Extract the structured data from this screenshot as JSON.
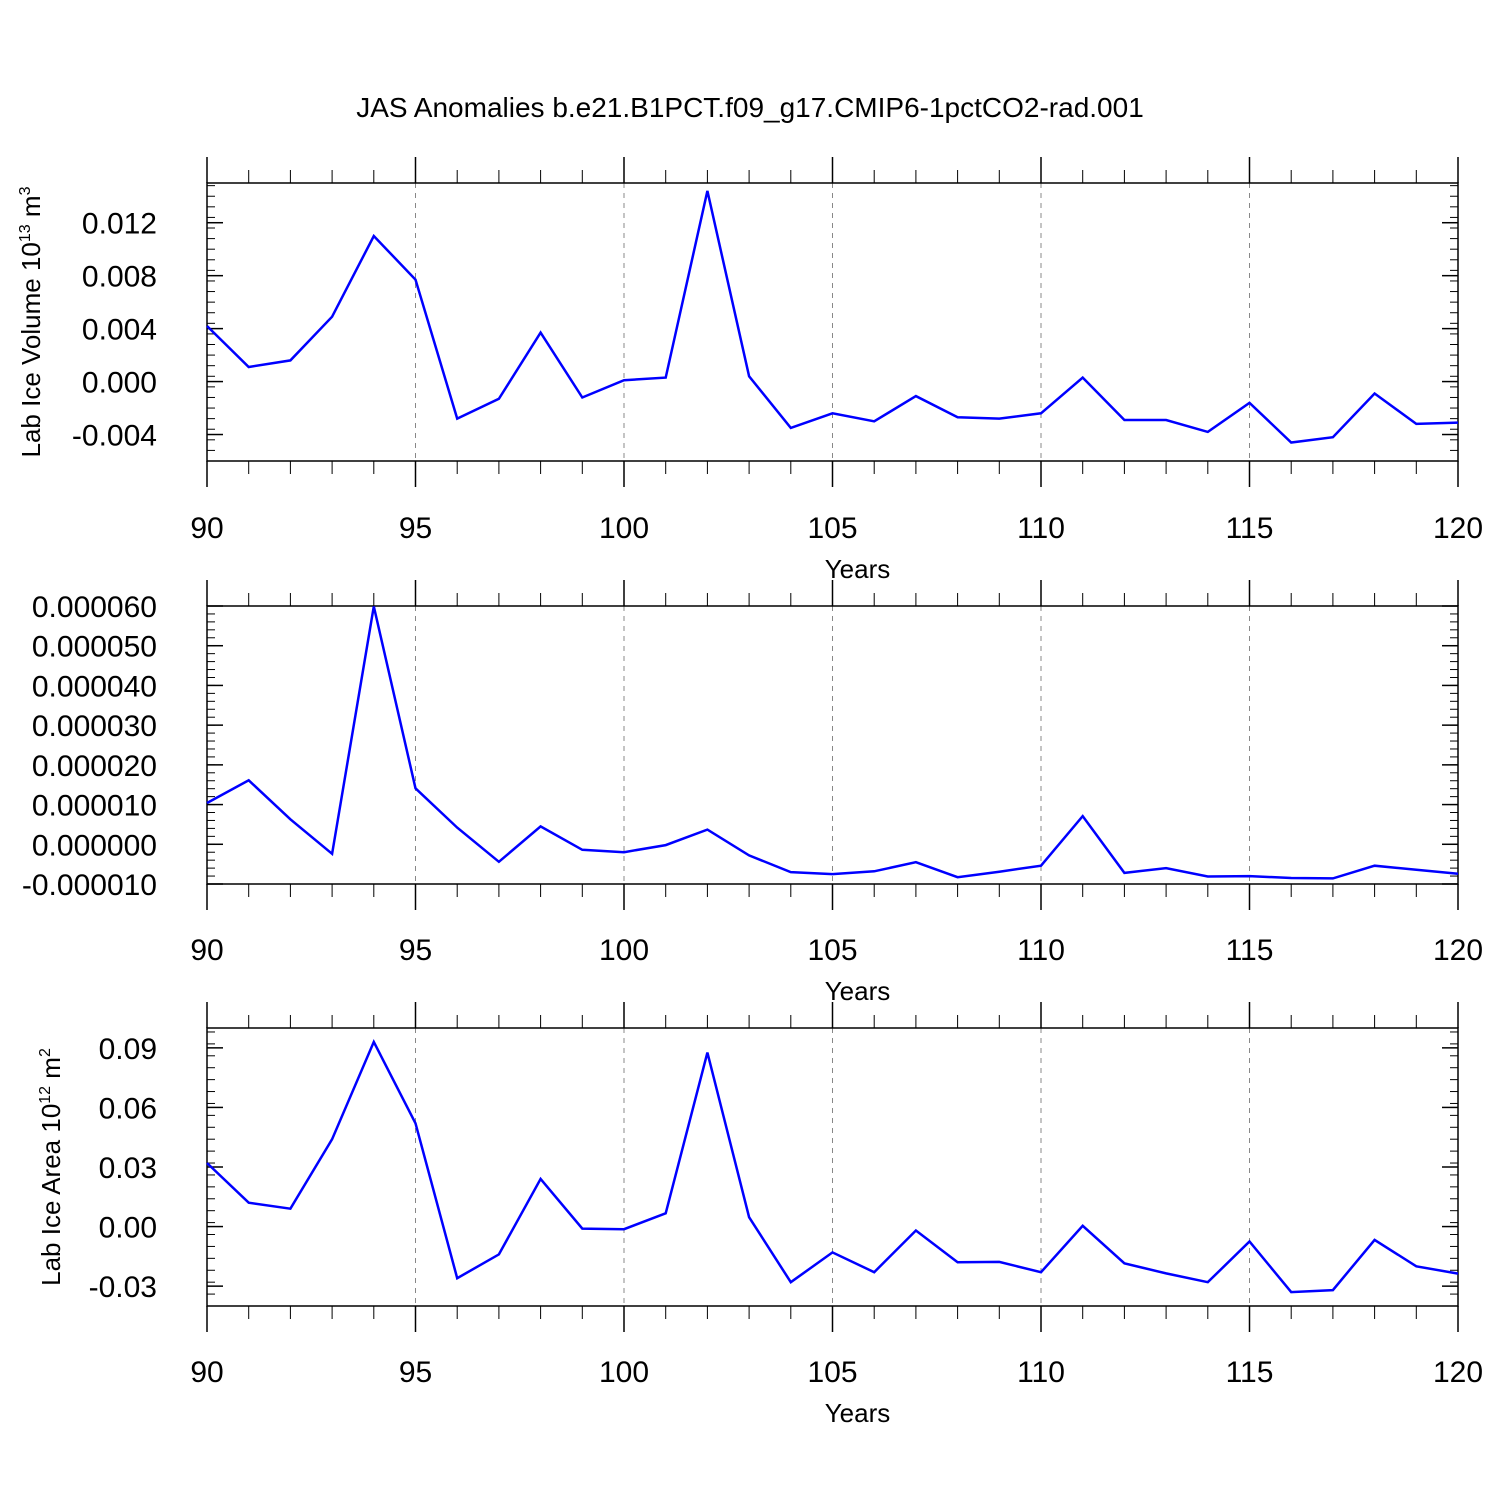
{
  "title": "JAS Anomalies b.e21.B1PCT.f09_g17.CMIP6-1pctCO2-rad.001",
  "colors": {
    "line": "#0000ff",
    "axis": "#000000",
    "grid": "#888888"
  },
  "chart_data": [
    {
      "type": "line",
      "xlabel": "Years",
      "ylabel": {
        "base": "Lab Ice Volume 10",
        "exp": "13",
        "unit": " m",
        "unit_exp": "3"
      },
      "xlim": [
        90,
        120
      ],
      "ylim": [
        -0.006,
        0.015
      ],
      "xticks": [
        90,
        95,
        100,
        105,
        110,
        115,
        120
      ],
      "yticks": [
        -0.004,
        0.0,
        0.004,
        0.008,
        0.012
      ],
      "ytick_labels": [
        "-0.004",
        "0.000",
        "0.004",
        "0.008",
        "0.012"
      ],
      "grid": "vertical dashed at major x ticks",
      "x": [
        90,
        91,
        92,
        93,
        94,
        95,
        96,
        97,
        98,
        99,
        100,
        101,
        102,
        103,
        104,
        105,
        106,
        107,
        108,
        109,
        110,
        111,
        112,
        113,
        114,
        115,
        116,
        117,
        118,
        119,
        120
      ],
      "y": [
        0.0042,
        0.0011,
        0.0016,
        0.0049,
        0.011,
        0.0077,
        -0.0028,
        -0.0013,
        0.0037,
        -0.0012,
        0.0001,
        0.0003,
        0.0144,
        0.0004,
        -0.0035,
        -0.0024,
        -0.003,
        -0.0011,
        -0.0027,
        -0.0028,
        -0.0024,
        0.0003,
        -0.0029,
        -0.0029,
        -0.0038,
        -0.0016,
        -0.0046,
        -0.0042,
        -0.0009,
        -0.0032,
        -0.0031
      ]
    },
    {
      "type": "line",
      "xlabel": "Years",
      "ylabel": null,
      "xlim": [
        90,
        120
      ],
      "ylim": [
        -1e-05,
        6e-05
      ],
      "xticks": [
        90,
        95,
        100,
        105,
        110,
        115,
        120
      ],
      "yticks": [
        -1e-05,
        0.0,
        1e-05,
        2e-05,
        3e-05,
        4e-05,
        5e-05,
        6e-05
      ],
      "ytick_labels": [
        "-0.000010",
        "0.000000",
        "0.000010",
        "0.000020",
        "0.000030",
        "0.000040",
        "0.000050",
        "0.000060"
      ],
      "grid": "vertical dashed at major x ticks",
      "x": [
        90,
        91,
        92,
        93,
        94,
        95,
        96,
        97,
        98,
        99,
        100,
        101,
        102,
        103,
        104,
        105,
        106,
        107,
        108,
        109,
        110,
        111,
        112,
        113,
        114,
        115,
        116,
        117,
        118,
        119,
        120
      ],
      "y": [
        1.04e-05,
        1.61e-05,
        6.3e-06,
        -2.4e-06,
        5.99e-05,
        1.41e-05,
        4.2e-06,
        -4.4e-06,
        4.5e-06,
        -1.4e-06,
        -2e-06,
        -2e-07,
        3.7e-06,
        -2.8e-06,
        -7e-06,
        -7.5e-06,
        -6.8e-06,
        -4.5e-06,
        -8.3e-06,
        -6.9e-06,
        -5.4e-06,
        7.1e-06,
        -7.2e-06,
        -6e-06,
        -8.1e-06,
        -8e-06,
        -8.5e-06,
        -8.6e-06,
        -5.4e-06,
        -6.4e-06,
        -7.4e-06
      ]
    },
    {
      "type": "line",
      "xlabel": "Years",
      "ylabel": {
        "base": "Lab Ice Area 10",
        "exp": "12",
        "unit": " m",
        "unit_exp": "2"
      },
      "xlim": [
        90,
        120
      ],
      "ylim": [
        -0.04,
        0.1
      ],
      "xticks": [
        90,
        95,
        100,
        105,
        110,
        115,
        120
      ],
      "yticks": [
        -0.03,
        0.0,
        0.03,
        0.06,
        0.09
      ],
      "ytick_labels": [
        "-0.03",
        "0.00",
        "0.03",
        "0.06",
        "0.09"
      ],
      "grid": "vertical dashed at major x ticks",
      "x": [
        90,
        91,
        92,
        93,
        94,
        95,
        96,
        97,
        98,
        99,
        100,
        101,
        102,
        103,
        104,
        105,
        106,
        107,
        108,
        109,
        110,
        111,
        112,
        113,
        114,
        115,
        116,
        117,
        118,
        119,
        120
      ],
      "y": [
        0.032,
        0.012,
        0.009,
        0.044,
        0.093,
        0.052,
        -0.026,
        -0.014,
        0.024,
        -0.001,
        -0.0013,
        0.0067,
        0.0876,
        0.0047,
        -0.028,
        -0.013,
        -0.023,
        -0.002,
        -0.018,
        -0.0178,
        -0.023,
        0.0004,
        -0.0185,
        -0.0236,
        -0.028,
        -0.0075,
        -0.033,
        -0.032,
        -0.0067,
        -0.02,
        -0.0237
      ]
    }
  ]
}
